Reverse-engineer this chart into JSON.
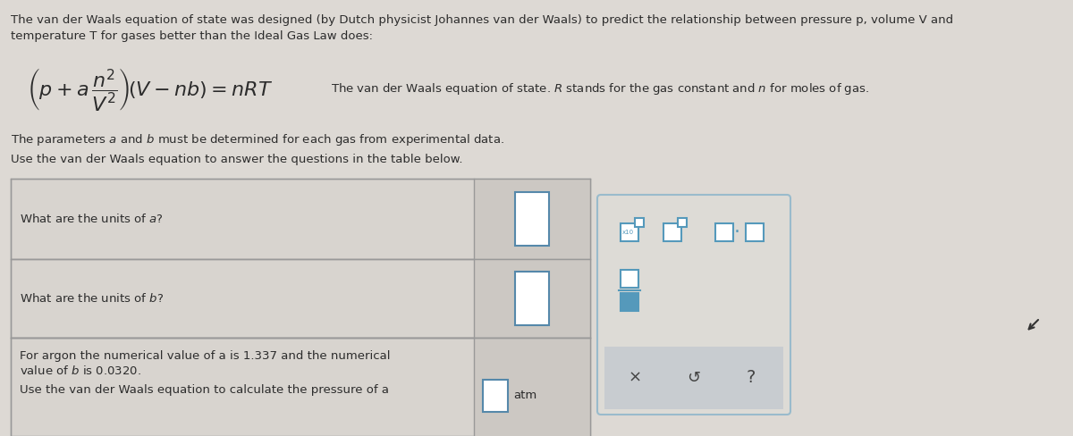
{
  "bg_color": "#ddd9d4",
  "text_color": "#2c2c2c",
  "title_text_line1": "The van der Waals equation of state was designed (by Dutch physicist Johannes van der Waals) to predict the relationship between pressure p, volume V and",
  "title_text_line2": "temperature T for gases better than the Ideal Gas Law does:",
  "equation_description": "The van der Waals equation of state. R stands for the gas constant and n for moles of gas.",
  "params_text": "The parameters a and b must be determined for each gas from experimental data.",
  "use_text": "Use the van der Waals equation to answer the questions in the table below.",
  "row1_text": "What are the units of a?",
  "row2_text": "What are the units of b?",
  "row3_text_line1": "For argon the numerical value of a is 1.337 and the numerical",
  "row3_text_line2": "value of b is 0.0320.",
  "row3_text_line3": "Use the van der Waals equation to calculate the pressure of a",
  "row3_answer": "atm",
  "icon_color": "#5599bb",
  "toolbar_bg": "#dddbd6",
  "toolbar_border": "#99bbcc",
  "answer_box_color": "#5588aa",
  "table_bg": "#d8d4cf",
  "answer_col_bg": "#ccc8c3",
  "table_border": "#999999",
  "bottom_bar_bg": "#c8ccd0"
}
